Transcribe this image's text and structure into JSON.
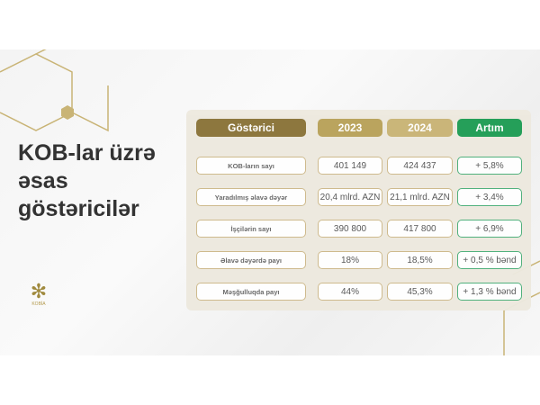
{
  "title": {
    "line1": "KOB-lar üzrə",
    "line2": "əsas",
    "line3": "göstəricilər"
  },
  "table": {
    "headers": [
      "Göstərici",
      "2023",
      "2024",
      "Artım"
    ],
    "rows": [
      {
        "label": "KOB-ların sayı",
        "y2023": "401 149",
        "y2024": "424 437",
        "growth": "+ 5,8%"
      },
      {
        "label": "Yaradılmış əlavə dəyər",
        "y2023": "20,4 mlrd. AZN",
        "y2024": "21,1 mlrd. AZN",
        "growth": "+ 3,4%"
      },
      {
        "label": "İşçilərin sayı",
        "y2023": "390 800",
        "y2024": "417 800",
        "growth": "+ 6,9%"
      },
      {
        "label": "Əlavə dəyərdə payı",
        "y2023": "18%",
        "y2024": "18,5%",
        "growth": "+ 0,5 % bənd"
      },
      {
        "label": "Məşğulluqda payı",
        "y2023": "44%",
        "y2024": "45,3%",
        "growth": "+ 1,3 % bənd"
      }
    ]
  },
  "colors": {
    "header_dark": "#8a7338",
    "header_gold": "#b9a25a",
    "header_light": "#c9b476",
    "growth_green": "#1f9d55"
  },
  "logo": {
    "text": "KOBİA"
  }
}
